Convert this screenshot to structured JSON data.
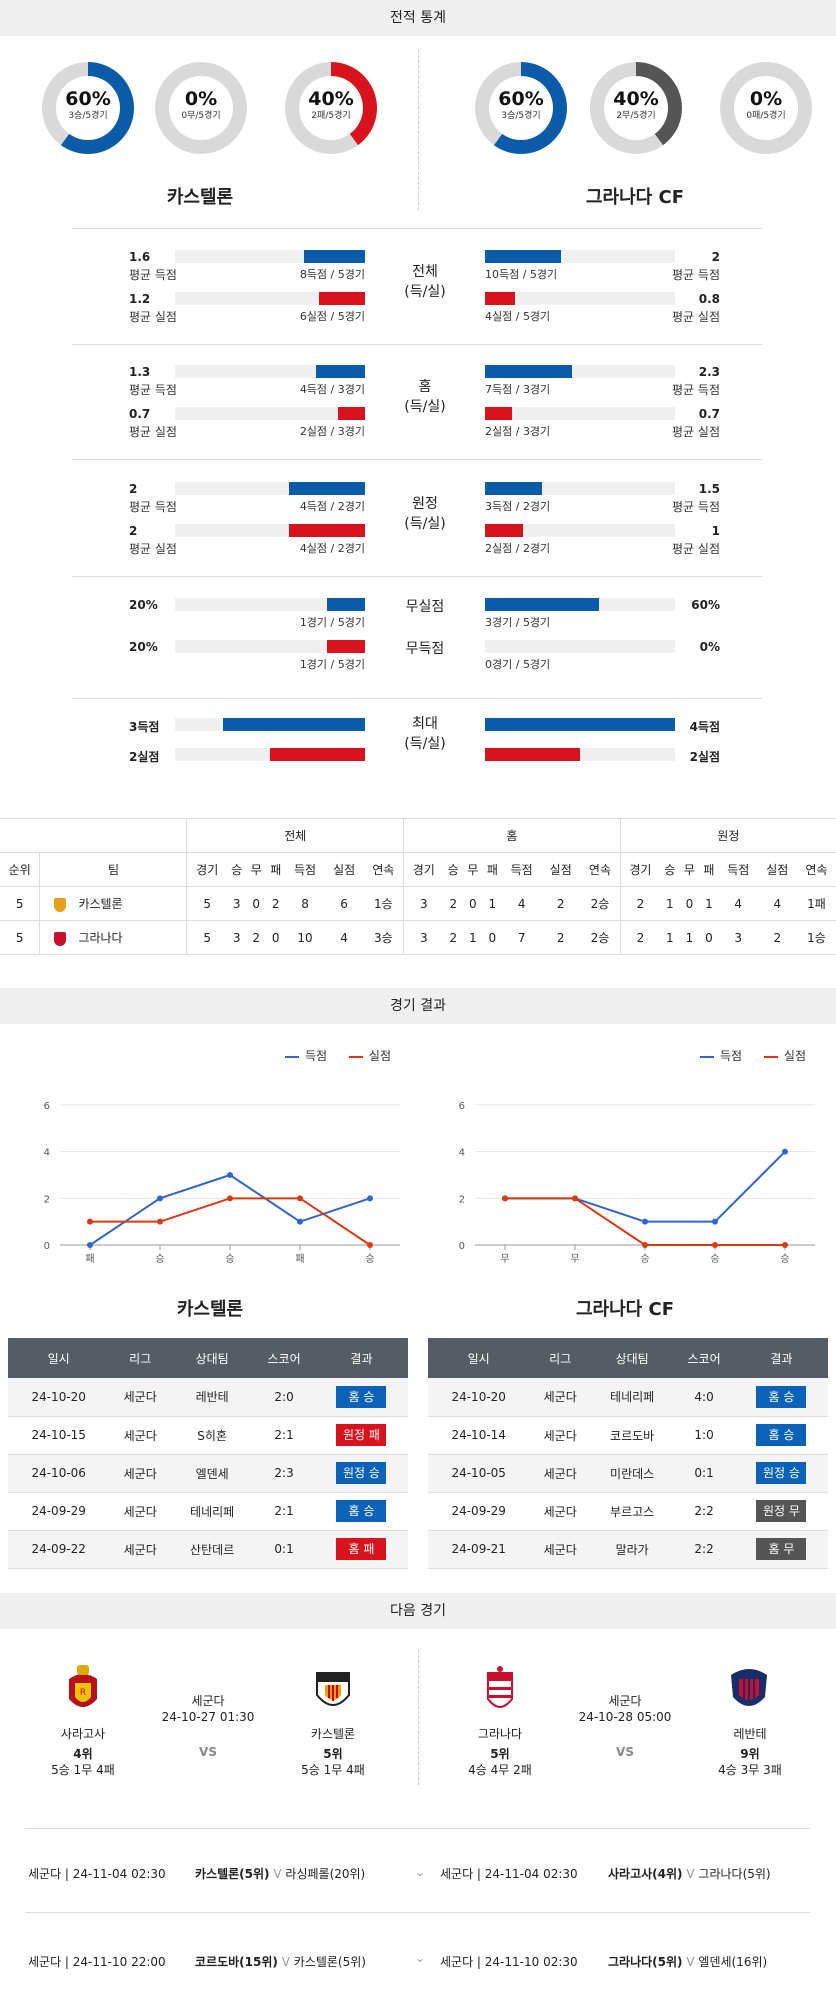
{
  "sections": {
    "stats": "전적 통계",
    "results": "경기 결과",
    "next": "다음 경기"
  },
  "donuts": [
    {
      "pct": "60%",
      "sub": "3승/5경기",
      "value": 0.6,
      "color": "#0a5ca8"
    },
    {
      "pct": "0%",
      "sub": "0무/5경기",
      "value": 0,
      "color": "#555555"
    },
    {
      "pct": "40%",
      "sub": "2패/5경기",
      "value": 0.4,
      "color": "#d7141e"
    },
    {
      "pct": "60%",
      "sub": "3승/5경기",
      "value": 0.6,
      "color": "#0a5ca8"
    },
    {
      "pct": "40%",
      "sub": "2무/5경기",
      "value": 0.4,
      "color": "#555555"
    },
    {
      "pct": "0%",
      "sub": "0패/5경기",
      "value": 0,
      "color": "#d7141e"
    }
  ],
  "teams": {
    "left": "카스텔론",
    "right": "그라나다 CF"
  },
  "compare": [
    {
      "cat": "전체",
      "cat2": "(득/실)",
      "rows": [
        {
          "lv": "1.6",
          "ll": "평균 득점",
          "lc": "8득점 / 5경기",
          "lf": 0.32,
          "rv": "2",
          "rl": "평균 득점",
          "rc": "10득점 / 5경기",
          "rf": 0.4,
          "col": "blue"
        },
        {
          "lv": "1.2",
          "ll": "평균 실점",
          "lc": "6실점 / 5경기",
          "lf": 0.24,
          "rv": "0.8",
          "rl": "평균 실점",
          "rc": "4실점 / 5경기",
          "rf": 0.16,
          "col": "red"
        }
      ]
    },
    {
      "cat": "홈",
      "cat2": "(득/실)",
      "rows": [
        {
          "lv": "1.3",
          "ll": "평균 득점",
          "lc": "4득점 / 3경기",
          "lf": 0.26,
          "rv": "2.3",
          "rl": "평균 득점",
          "rc": "7득점 / 3경기",
          "rf": 0.46,
          "col": "blue"
        },
        {
          "lv": "0.7",
          "ll": "평균 실점",
          "lc": "2실점 / 3경기",
          "lf": 0.14,
          "rv": "0.7",
          "rl": "평균 실점",
          "rc": "2실점 / 3경기",
          "rf": 0.14,
          "col": "red"
        }
      ]
    },
    {
      "cat": "원정",
      "cat2": "(득/실)",
      "rows": [
        {
          "lv": "2",
          "ll": "평균 득점",
          "lc": "4득점 / 2경기",
          "lf": 0.4,
          "rv": "1.5",
          "rl": "평균 득점",
          "rc": "3득점 / 2경기",
          "rf": 0.3,
          "col": "blue"
        },
        {
          "lv": "2",
          "ll": "평균 실점",
          "lc": "4실점 / 2경기",
          "lf": 0.4,
          "rv": "1",
          "rl": "평균 실점",
          "rc": "2실점 / 2경기",
          "rf": 0.2,
          "col": "red"
        }
      ]
    }
  ],
  "clean": [
    {
      "cat": "무실점",
      "lv": "20%",
      "lc": "1경기 / 5경기",
      "lf": 0.2,
      "rv": "60%",
      "rc": "3경기 / 5경기",
      "rf": 0.6,
      "col": "blue"
    },
    {
      "cat": "무득점",
      "lv": "20%",
      "lc": "1경기 / 5경기",
      "lf": 0.2,
      "rv": "0%",
      "rc": "0경기 / 5경기",
      "rf": 0,
      "col": "red"
    }
  ],
  "maxrow": {
    "cat": "최대",
    "cat2": "(득/실)",
    "l1": "3득점",
    "l2": "2실점",
    "r1": "4득점",
    "r2": "2실점",
    "lf1": 0.75,
    "lf2": 0.5,
    "rf1": 1.0,
    "rf2": 0.5
  },
  "standings": {
    "groups": [
      "전체",
      "홈",
      "원정"
    ],
    "cols": [
      "순위",
      "팀",
      "경기",
      "승",
      "무",
      "패",
      "득점",
      "실점",
      "연속"
    ],
    "rows": [
      {
        "rank": "5",
        "team": "카스텔론",
        "all": [
          "5",
          "3",
          "0",
          "2",
          "8",
          "6",
          "1승"
        ],
        "home": [
          "3",
          "2",
          "0",
          "1",
          "4",
          "2",
          "2승"
        ],
        "away": [
          "2",
          "1",
          "0",
          "1",
          "4",
          "4",
          "1패"
        ]
      },
      {
        "rank": "5",
        "team": "그라나다",
        "all": [
          "5",
          "3",
          "2",
          "0",
          "10",
          "4",
          "3승"
        ],
        "home": [
          "3",
          "2",
          "1",
          "0",
          "7",
          "2",
          "2승"
        ],
        "away": [
          "2",
          "1",
          "1",
          "0",
          "3",
          "2",
          "1승"
        ]
      }
    ]
  },
  "charts": {
    "legend": {
      "scored": "득점",
      "conceded": "실점"
    },
    "left_title": "카스텔론",
    "right_title": "그라나다 CF"
  },
  "chart_data": [
    {
      "type": "line",
      "x": [
        "패",
        "승",
        "승",
        "패",
        "승"
      ],
      "series": [
        {
          "name": "득점",
          "values": [
            0,
            2,
            3,
            1,
            2
          ]
        },
        {
          "name": "실점",
          "values": [
            1,
            1,
            2,
            2,
            0
          ]
        }
      ],
      "yticks": [
        0,
        2,
        4,
        6
      ],
      "ylim": [
        0,
        6
      ]
    },
    {
      "type": "line",
      "x": [
        "무",
        "무",
        "승",
        "승",
        "승"
      ],
      "series": [
        {
          "name": "득점",
          "values": [
            2,
            2,
            1,
            1,
            4
          ]
        },
        {
          "name": "실점",
          "values": [
            2,
            2,
            0,
            0,
            0
          ]
        }
      ],
      "yticks": [
        0,
        2,
        4,
        6
      ],
      "ylim": [
        0,
        6
      ]
    }
  ],
  "results": {
    "headers": [
      "일시",
      "리그",
      "상대팀",
      "스코어",
      "결과"
    ],
    "left": [
      [
        "24-10-20",
        "세군다",
        "레반테",
        "2:0",
        "홈 승",
        "blue"
      ],
      [
        "24-10-15",
        "세군다",
        "S히혼",
        "2:1",
        "원정 패",
        "red"
      ],
      [
        "24-10-06",
        "세군다",
        "엘덴세",
        "2:3",
        "원정 승",
        "blue"
      ],
      [
        "24-09-29",
        "세군다",
        "테네리페",
        "2:1",
        "홈 승",
        "blue"
      ],
      [
        "24-09-22",
        "세군다",
        "산탄데르",
        "0:1",
        "홈 패",
        "red"
      ]
    ],
    "right": [
      [
        "24-10-20",
        "세군다",
        "테네리페",
        "4:0",
        "홈 승",
        "blue"
      ],
      [
        "24-10-14",
        "세군다",
        "코르도바",
        "1:0",
        "홈 승",
        "blue"
      ],
      [
        "24-10-05",
        "세군다",
        "미란데스",
        "0:1",
        "원정 승",
        "blue"
      ],
      [
        "24-09-29",
        "세군다",
        "부르고스",
        "2:2",
        "원정 무",
        "gray"
      ],
      [
        "24-09-21",
        "세군다",
        "말라가",
        "2:2",
        "홈 무",
        "gray"
      ]
    ]
  },
  "next": {
    "left": {
      "home": "사라고사",
      "home_rank": "4위",
      "home_rec": "5승 1무 4패",
      "league": "세군다",
      "date": "24-10-27 01:30",
      "vs": "VS",
      "away": "카스텔론",
      "away_rank": "5위",
      "away_rec": "5승 1무 4패"
    },
    "right": {
      "home": "그라나다",
      "home_rank": "5위",
      "home_rec": "4승 4무 2패",
      "league": "세군다",
      "date": "24-10-28 05:00",
      "vs": "VS",
      "away": "레반테",
      "away_rank": "9위",
      "away_rec": "4승 3무 3패"
    }
  },
  "fixtures": [
    {
      "l_meta": "세군다 | 24-11-04 02:30",
      "l_home": "카스텔론(5위)",
      "l_away": "라싱페롤(20위)",
      "r_meta": "세군다 | 24-11-04 02:30",
      "r_home": "사라고사(4위)",
      "r_away": "그라나다(5위)"
    },
    {
      "l_meta": "세군다 | 24-11-10 22:00",
      "l_home": "코르도바(15위)",
      "l_away": "카스텔론(5위)",
      "r_meta": "세군다 | 24-11-10 02:30",
      "r_home": "그라나다(5위)",
      "r_away": "엘덴세(16위)"
    }
  ]
}
